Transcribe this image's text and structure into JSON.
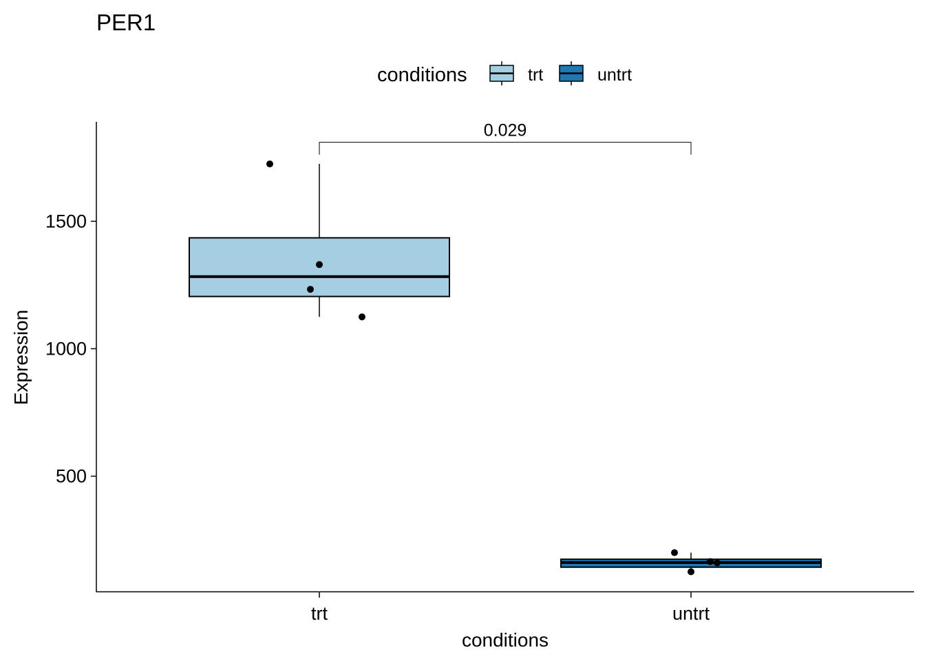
{
  "chart_data": {
    "type": "boxplot",
    "title": "PER1",
    "xlabel": "conditions",
    "ylabel": "Expression",
    "categories": [
      "trt",
      "untrt"
    ],
    "ylim": [
      45,
      1890
    ],
    "yticks": [
      500,
      1000,
      1500
    ],
    "grid": false,
    "legend": {
      "title": "conditions",
      "position": "top",
      "entries": [
        {
          "label": "trt",
          "color": "#a6cee3"
        },
        {
          "label": "untrt",
          "color": "#1f78b4"
        }
      ]
    },
    "series": [
      {
        "name": "trt",
        "color": "#a6cee3",
        "box": {
          "min": 1125,
          "q1": 1205,
          "median": 1283,
          "q3": 1435,
          "max": 1725
        },
        "points": [
          1725,
          1330,
          1233,
          1125
        ]
      },
      {
        "name": "untrt",
        "color": "#1f78b4",
        "box": {
          "min": 125,
          "q1": 143,
          "median": 161,
          "q3": 174,
          "max": 200
        },
        "points": [
          200,
          165,
          160,
          125
        ]
      }
    ],
    "comparison": {
      "groups": [
        "trt",
        "untrt"
      ],
      "label": "0.029",
      "y": 1810
    }
  }
}
